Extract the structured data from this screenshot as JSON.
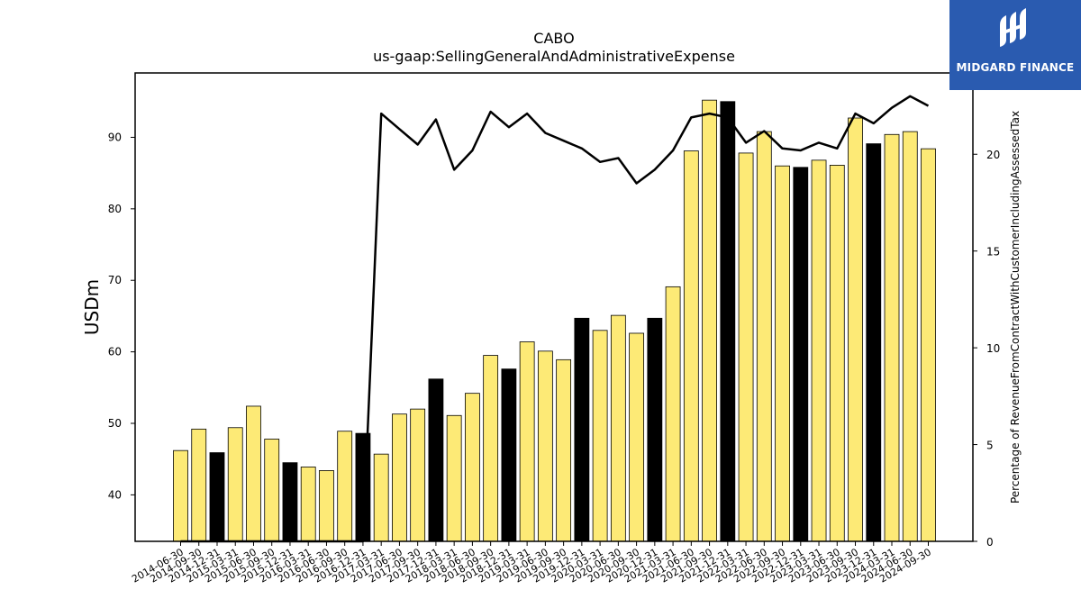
{
  "brand": {
    "name": "MIDGARD FINANCE",
    "logo_icon": "midgard-logo-icon",
    "color": "#2a5bb0"
  },
  "colors": {
    "bar": "#fdea76",
    "bar_highlight": "#000000",
    "line": "#000000"
  },
  "chart_data": {
    "type": "bar",
    "title": "CABO",
    "subtitle": "us-gaap:SellingGeneralAndAdministrativeExpense",
    "ylabel": "USDm",
    "y2label": "Percentage of RevenueFromContractWithCustomerIncludingAssessedTax",
    "ylim": [
      33.5,
      99
    ],
    "y2lim": [
      0,
      24.2
    ],
    "yticks": [
      40,
      50,
      60,
      70,
      80,
      90
    ],
    "y2ticks": [
      0,
      5,
      10,
      15,
      20
    ],
    "categories": [
      "2014-06-30",
      "2014-09-30",
      "2014-12-31",
      "2015-03-31",
      "2015-06-30",
      "2015-09-30",
      "2015-12-31",
      "2016-03-31",
      "2016-06-30",
      "2016-09-30",
      "2016-12-31",
      "2017-03-31",
      "2017-06-30",
      "2017-09-30",
      "2017-12-31",
      "2018-03-31",
      "2018-06-30",
      "2018-09-30",
      "2018-12-31",
      "2019-03-31",
      "2019-06-30",
      "2019-09-30",
      "2019-12-31",
      "2020-03-31",
      "2020-06-30",
      "2020-09-30",
      "2020-12-31",
      "2021-03-31",
      "2021-06-30",
      "2021-09-30",
      "2021-12-31",
      "2022-03-31",
      "2022-06-30",
      "2022-09-30",
      "2022-12-31",
      "2023-03-31",
      "2023-06-30",
      "2023-09-30",
      "2023-12-31",
      "2024-03-31",
      "2024-06-30",
      "2024-09-30"
    ],
    "series": [
      {
        "kind": "bar",
        "axis": "left",
        "values": [
          46.2,
          49.2,
          45.9,
          49.4,
          52.4,
          47.8,
          44.5,
          43.9,
          43.4,
          48.9,
          48.6,
          45.7,
          51.3,
          52.0,
          56.2,
          51.1,
          54.2,
          59.5,
          57.6,
          61.4,
          60.1,
          58.9,
          64.7,
          63.0,
          65.1,
          62.6,
          64.7,
          69.1,
          88.1,
          95.2,
          95.0,
          87.8,
          90.8,
          86.0,
          85.8,
          86.8,
          86.1,
          92.7,
          89.1,
          90.4,
          90.8,
          88.4
        ],
        "highlight": [
          false,
          false,
          true,
          false,
          false,
          false,
          true,
          false,
          false,
          false,
          true,
          false,
          false,
          false,
          true,
          false,
          false,
          false,
          true,
          false,
          false,
          false,
          true,
          false,
          false,
          false,
          true,
          false,
          false,
          false,
          true,
          false,
          false,
          false,
          true,
          false,
          false,
          false,
          true,
          false,
          false,
          false
        ]
      },
      {
        "kind": "line",
        "axis": "right",
        "values": [
          0,
          0,
          0,
          0,
          0,
          0,
          0,
          0,
          0,
          0,
          0,
          22.1,
          21.3,
          20.5,
          21.8,
          19.2,
          20.2,
          22.2,
          21.4,
          22.1,
          21.1,
          20.7,
          20.3,
          19.6,
          19.8,
          18.5,
          19.2,
          20.2,
          21.9,
          22.1,
          21.9,
          20.6,
          21.2,
          20.3,
          20.2,
          20.6,
          20.3,
          22.1,
          21.6,
          22.4,
          23.0,
          22.5
        ]
      }
    ],
    "grid": false
  }
}
